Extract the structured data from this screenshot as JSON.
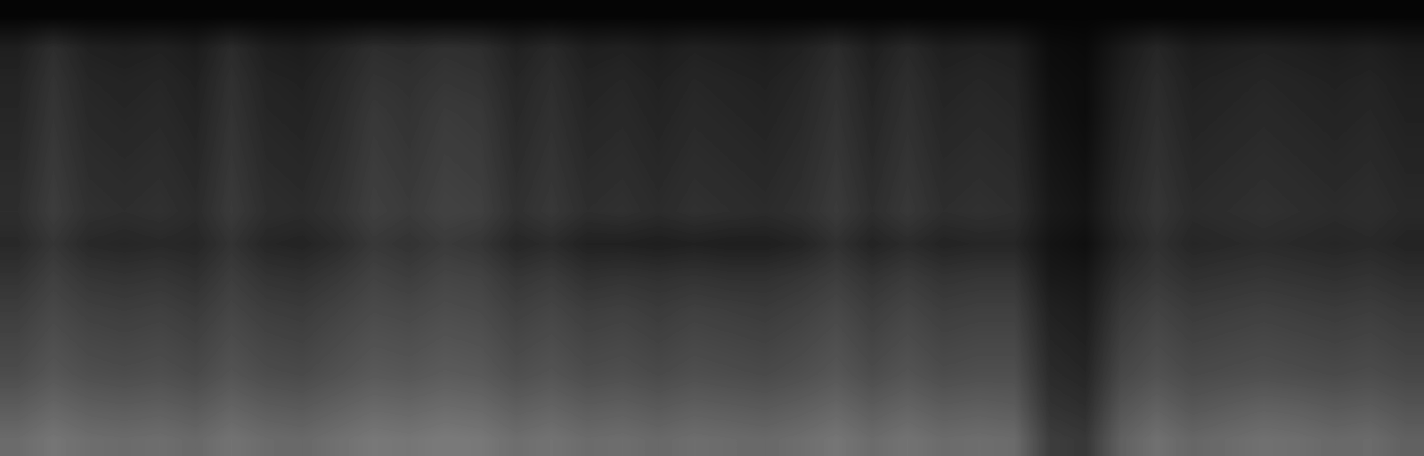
{
  "chart_data": {
    "type": "heatmap",
    "color": "gray",
    "tick_labels": false,
    "color_range": [
      0,
      1
    ],
    "cells": [
      [
        0.02,
        0.02,
        0.02,
        0.02,
        0.02,
        0.02,
        0.02,
        0.02,
        0.02,
        0.02,
        0.02,
        0.02,
        0.02,
        0.02,
        0.02,
        0.02,
        0.02,
        0.02,
        0.02,
        0.02,
        0.02,
        0.02,
        0.02,
        0.02,
        0.02,
        0.02,
        0.02,
        0.02,
        0.02,
        0.02,
        0.02,
        0.02,
        0.02,
        0.02,
        0.02,
        0.02,
        0.02,
        0.02,
        0.02,
        0.02
      ],
      [
        0.12,
        0.18,
        0.13,
        0.12,
        0.13,
        0.11,
        0.17,
        0.12,
        0.11,
        0.14,
        0.18,
        0.17,
        0.19,
        0.18,
        0.13,
        0.16,
        0.12,
        0.13,
        0.11,
        0.13,
        0.12,
        0.11,
        0.13,
        0.17,
        0.12,
        0.16,
        0.12,
        0.13,
        0.12,
        0.05,
        0.04,
        0.1,
        0.15,
        0.11,
        0.12,
        0.13,
        0.12,
        0.11,
        0.12,
        0.1
      ],
      [
        0.14,
        0.2,
        0.15,
        0.14,
        0.15,
        0.13,
        0.19,
        0.14,
        0.13,
        0.16,
        0.2,
        0.19,
        0.21,
        0.2,
        0.15,
        0.18,
        0.14,
        0.15,
        0.13,
        0.15,
        0.14,
        0.13,
        0.15,
        0.19,
        0.14,
        0.18,
        0.14,
        0.15,
        0.14,
        0.06,
        0.05,
        0.12,
        0.17,
        0.13,
        0.14,
        0.15,
        0.14,
        0.13,
        0.14,
        0.12
      ],
      [
        0.15,
        0.21,
        0.16,
        0.15,
        0.16,
        0.14,
        0.2,
        0.15,
        0.14,
        0.17,
        0.22,
        0.2,
        0.23,
        0.22,
        0.16,
        0.19,
        0.15,
        0.16,
        0.14,
        0.16,
        0.15,
        0.14,
        0.16,
        0.2,
        0.15,
        0.19,
        0.15,
        0.16,
        0.15,
        0.07,
        0.05,
        0.13,
        0.18,
        0.14,
        0.15,
        0.16,
        0.15,
        0.14,
        0.15,
        0.13
      ],
      [
        0.16,
        0.22,
        0.17,
        0.16,
        0.17,
        0.15,
        0.21,
        0.16,
        0.15,
        0.18,
        0.23,
        0.21,
        0.24,
        0.23,
        0.17,
        0.2,
        0.16,
        0.17,
        0.15,
        0.17,
        0.16,
        0.15,
        0.17,
        0.21,
        0.16,
        0.2,
        0.16,
        0.17,
        0.16,
        0.08,
        0.06,
        0.14,
        0.19,
        0.15,
        0.16,
        0.17,
        0.16,
        0.15,
        0.16,
        0.14
      ],
      [
        0.17,
        0.23,
        0.18,
        0.17,
        0.18,
        0.16,
        0.22,
        0.17,
        0.16,
        0.19,
        0.24,
        0.22,
        0.25,
        0.24,
        0.18,
        0.21,
        0.17,
        0.18,
        0.16,
        0.18,
        0.17,
        0.16,
        0.18,
        0.22,
        0.17,
        0.21,
        0.17,
        0.18,
        0.17,
        0.09,
        0.07,
        0.15,
        0.2,
        0.16,
        0.17,
        0.18,
        0.17,
        0.16,
        0.17,
        0.15
      ],
      [
        0.18,
        0.24,
        0.19,
        0.18,
        0.19,
        0.17,
        0.23,
        0.18,
        0.17,
        0.2,
        0.25,
        0.23,
        0.26,
        0.25,
        0.19,
        0.22,
        0.18,
        0.19,
        0.17,
        0.19,
        0.18,
        0.17,
        0.19,
        0.23,
        0.18,
        0.22,
        0.18,
        0.19,
        0.18,
        0.1,
        0.08,
        0.16,
        0.21,
        0.17,
        0.18,
        0.19,
        0.18,
        0.17,
        0.18,
        0.16
      ],
      [
        0.16,
        0.21,
        0.16,
        0.15,
        0.16,
        0.15,
        0.2,
        0.15,
        0.14,
        0.17,
        0.22,
        0.2,
        0.23,
        0.21,
        0.15,
        0.17,
        0.13,
        0.13,
        0.12,
        0.13,
        0.12,
        0.12,
        0.14,
        0.19,
        0.14,
        0.17,
        0.14,
        0.15,
        0.15,
        0.08,
        0.06,
        0.14,
        0.19,
        0.15,
        0.16,
        0.17,
        0.16,
        0.15,
        0.16,
        0.14
      ],
      [
        0.2,
        0.25,
        0.21,
        0.2,
        0.21,
        0.19,
        0.24,
        0.2,
        0.19,
        0.22,
        0.26,
        0.24,
        0.27,
        0.26,
        0.21,
        0.23,
        0.19,
        0.2,
        0.19,
        0.2,
        0.19,
        0.19,
        0.21,
        0.24,
        0.2,
        0.23,
        0.2,
        0.21,
        0.21,
        0.1,
        0.09,
        0.18,
        0.22,
        0.19,
        0.2,
        0.21,
        0.2,
        0.19,
        0.2,
        0.18
      ],
      [
        0.24,
        0.28,
        0.25,
        0.24,
        0.25,
        0.23,
        0.27,
        0.24,
        0.23,
        0.26,
        0.29,
        0.28,
        0.3,
        0.29,
        0.25,
        0.27,
        0.24,
        0.25,
        0.23,
        0.25,
        0.24,
        0.23,
        0.25,
        0.28,
        0.24,
        0.27,
        0.24,
        0.25,
        0.25,
        0.13,
        0.11,
        0.22,
        0.26,
        0.23,
        0.24,
        0.25,
        0.24,
        0.23,
        0.24,
        0.22
      ],
      [
        0.27,
        0.31,
        0.28,
        0.27,
        0.28,
        0.26,
        0.3,
        0.27,
        0.26,
        0.29,
        0.32,
        0.31,
        0.33,
        0.32,
        0.28,
        0.3,
        0.27,
        0.28,
        0.26,
        0.28,
        0.27,
        0.26,
        0.28,
        0.31,
        0.27,
        0.3,
        0.27,
        0.28,
        0.28,
        0.15,
        0.13,
        0.25,
        0.29,
        0.26,
        0.27,
        0.28,
        0.27,
        0.26,
        0.27,
        0.25
      ],
      [
        0.3,
        0.34,
        0.31,
        0.3,
        0.31,
        0.29,
        0.33,
        0.3,
        0.29,
        0.32,
        0.35,
        0.34,
        0.36,
        0.35,
        0.31,
        0.33,
        0.3,
        0.31,
        0.29,
        0.31,
        0.3,
        0.29,
        0.31,
        0.34,
        0.3,
        0.33,
        0.3,
        0.31,
        0.31,
        0.17,
        0.15,
        0.28,
        0.32,
        0.29,
        0.3,
        0.31,
        0.3,
        0.29,
        0.3,
        0.28
      ],
      [
        0.36,
        0.4,
        0.37,
        0.36,
        0.37,
        0.35,
        0.39,
        0.36,
        0.35,
        0.38,
        0.41,
        0.4,
        0.42,
        0.41,
        0.37,
        0.39,
        0.36,
        0.37,
        0.35,
        0.37,
        0.36,
        0.35,
        0.37,
        0.4,
        0.36,
        0.39,
        0.36,
        0.37,
        0.36,
        0.2,
        0.18,
        0.33,
        0.38,
        0.34,
        0.36,
        0.38,
        0.37,
        0.35,
        0.36,
        0.33
      ],
      [
        0.42,
        0.46,
        0.43,
        0.42,
        0.43,
        0.41,
        0.45,
        0.42,
        0.41,
        0.44,
        0.47,
        0.46,
        0.48,
        0.47,
        0.43,
        0.45,
        0.42,
        0.43,
        0.41,
        0.43,
        0.42,
        0.41,
        0.43,
        0.46,
        0.42,
        0.45,
        0.42,
        0.43,
        0.42,
        0.24,
        0.22,
        0.38,
        0.44,
        0.4,
        0.42,
        0.44,
        0.43,
        0.41,
        0.42,
        0.38
      ]
    ]
  }
}
